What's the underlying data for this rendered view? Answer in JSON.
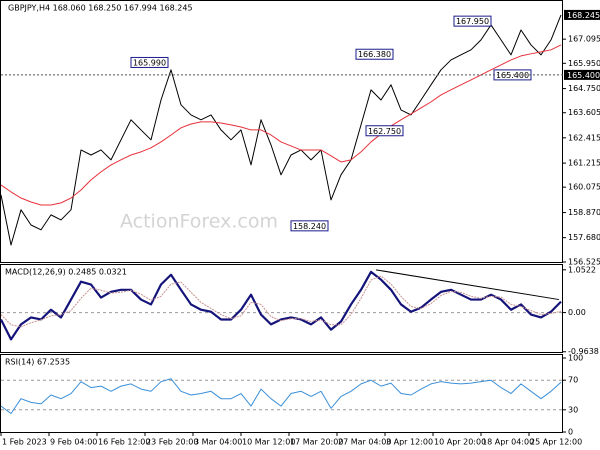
{
  "chart_data": [
    {
      "type": "line",
      "title": "GBPJPY,H4 168.060 168.250 167.994 168.245",
      "watermark": "ActionForex.com",
      "x": [
        0,
        10,
        20,
        30,
        40,
        50,
        60,
        70,
        80,
        90,
        100,
        110,
        120,
        130,
        140,
        150,
        160,
        170,
        180,
        190,
        200,
        210,
        220,
        230,
        240,
        250,
        260,
        270,
        280,
        290,
        300,
        310,
        320,
        330,
        340,
        350,
        360,
        370,
        380,
        390,
        400,
        410,
        420,
        430,
        440,
        450,
        460,
        470,
        480,
        490,
        500,
        510,
        520,
        530,
        540,
        550,
        560
      ],
      "xlim": [
        0,
        562
      ],
      "ylim": [
        156.525,
        168.81
      ],
      "yticks": [
        167.095,
        {
          "value": 165.95,
          "label": "165.950"
        },
        {
          "value": 164.75,
          "label": "164.750"
        },
        163.605,
        162.415,
        161.215,
        160.075,
        {
          "value": 158.87,
          "label": "158.870"
        },
        {
          "value": 157.68,
          "label": "157.680"
        },
        156.525
      ],
      "series": [
        {
          "name": "GBPJPY",
          "color": "#000000",
          "values": [
            159.71,
            157.33,
            159.0,
            158.28,
            158.05,
            158.76,
            158.52,
            159.0,
            161.84,
            161.6,
            161.84,
            161.37,
            162.32,
            163.27,
            162.79,
            162.32,
            164.21,
            165.64,
            163.98,
            163.5,
            163.27,
            163.5,
            162.79,
            162.32,
            162.79,
            161.13,
            163.27,
            162.08,
            160.66,
            161.6,
            161.84,
            161.37,
            161.84,
            159.47,
            160.66,
            161.37,
            163.03,
            164.69,
            164.21,
            164.93,
            163.74,
            163.5,
            164.21,
            164.93,
            165.64,
            166.11,
            166.35,
            166.59,
            167.06,
            167.77,
            167.06,
            166.35,
            167.53,
            166.82,
            166.35,
            167.06,
            168.245
          ]
        },
        {
          "name": "MA",
          "color": "#e8303a",
          "values": [
            160.18,
            159.85,
            159.56,
            159.37,
            159.23,
            159.23,
            159.33,
            159.56,
            159.94,
            160.42,
            160.8,
            161.13,
            161.37,
            161.6,
            161.75,
            161.94,
            162.22,
            162.55,
            162.89,
            163.07,
            163.17,
            163.17,
            163.12,
            163.03,
            162.93,
            162.79,
            162.79,
            162.55,
            162.22,
            162.03,
            161.84,
            161.84,
            161.84,
            161.56,
            161.27,
            161.37,
            161.75,
            162.22,
            162.6,
            162.98,
            163.27,
            163.55,
            163.83,
            164.12,
            164.45,
            164.69,
            164.93,
            165.16,
            165.4,
            165.64,
            165.87,
            166.11,
            166.3,
            166.4,
            166.49,
            166.59,
            166.82
          ]
        }
      ],
      "annotations": [
        {
          "x": 167,
          "value": 165.99,
          "label": "165.990"
        },
        {
          "x": 392,
          "value": 166.38,
          "label": "166.380"
        },
        {
          "x": 490,
          "value": 167.95,
          "label": "167.950"
        },
        {
          "x": 530,
          "value": 165.4,
          "label": "165.400"
        },
        {
          "x": 402,
          "value": 162.75,
          "label": "162.750"
        },
        {
          "x": 327,
          "value": 158.24,
          "label": "158.240"
        }
      ],
      "price_markers": [
        {
          "value": 168.245,
          "label": "168.245",
          "dashed": false
        },
        {
          "value": 165.4,
          "label": "165.400",
          "dashed": true
        }
      ]
    },
    {
      "type": "line",
      "title": "MACD(12,26,9) 0.2485 0.0321",
      "x": [
        0,
        10,
        20,
        30,
        40,
        50,
        60,
        70,
        80,
        90,
        100,
        110,
        120,
        130,
        140,
        150,
        160,
        170,
        180,
        190,
        200,
        210,
        220,
        230,
        240,
        250,
        260,
        270,
        280,
        290,
        300,
        310,
        320,
        330,
        340,
        350,
        360,
        370,
        380,
        390,
        400,
        410,
        420,
        430,
        440,
        450,
        460,
        470,
        480,
        490,
        500,
        510,
        520,
        530,
        540,
        550,
        560
      ],
      "xlim": [
        0,
        562
      ],
      "ylim": [
        -0.97,
        1.17
      ],
      "yticks": [
        1.0522,
        {
          "value": 0,
          "label": "0.00"
        },
        -0.9638
      ],
      "levels": [
        0
      ],
      "series": [
        {
          "name": "MACD",
          "color": "#14147a",
          "width": 2.2,
          "values": [
            -0.17,
            -0.66,
            -0.29,
            -0.12,
            -0.17,
            0.07,
            -0.12,
            0.32,
            0.76,
            0.69,
            0.37,
            0.51,
            0.56,
            0.56,
            0.32,
            0.2,
            0.69,
            0.93,
            0.56,
            0.2,
            0.07,
            0.02,
            -0.17,
            -0.17,
            0.07,
            0.44,
            -0.05,
            -0.29,
            -0.17,
            -0.12,
            -0.17,
            -0.29,
            -0.12,
            -0.42,
            -0.22,
            0.2,
            0.56,
            1.0,
            0.81,
            0.56,
            0.2,
            0.02,
            0.12,
            0.32,
            0.51,
            0.56,
            0.44,
            0.32,
            0.32,
            0.44,
            0.32,
            0.07,
            0.2,
            -0.05,
            -0.12,
            0.02,
            0.27
          ]
        },
        {
          "name": "Signal",
          "color": "#c89090",
          "width": 1,
          "values": [
            -0.05,
            -0.3,
            -0.35,
            -0.25,
            -0.18,
            -0.08,
            -0.05,
            0.05,
            0.35,
            0.6,
            0.55,
            0.48,
            0.5,
            0.55,
            0.45,
            0.3,
            0.4,
            0.7,
            0.75,
            0.5,
            0.25,
            0.1,
            -0.05,
            -0.15,
            -0.08,
            0.25,
            0.2,
            -0.1,
            -0.2,
            -0.15,
            -0.15,
            -0.22,
            -0.18,
            -0.3,
            -0.3,
            -0.05,
            0.35,
            0.8,
            0.9,
            0.7,
            0.4,
            0.15,
            0.1,
            0.22,
            0.42,
            0.52,
            0.5,
            0.4,
            0.35,
            0.4,
            0.38,
            0.2,
            0.15,
            0.05,
            -0.05,
            -0.02,
            0.03
          ]
        }
      ],
      "trendline": {
        "x": [
          375,
          558
        ],
        "values": [
          1.05,
          0.32
        ]
      }
    },
    {
      "type": "line",
      "title": "RSI(14) 67.2535",
      "x": [
        0,
        10,
        20,
        30,
        40,
        50,
        60,
        70,
        80,
        90,
        100,
        110,
        120,
        130,
        140,
        150,
        160,
        170,
        180,
        190,
        200,
        210,
        220,
        230,
        240,
        250,
        260,
        270,
        280,
        290,
        300,
        310,
        320,
        330,
        340,
        350,
        360,
        370,
        380,
        390,
        400,
        410,
        420,
        430,
        440,
        450,
        460,
        470,
        480,
        490,
        500,
        510,
        520,
        530,
        540,
        550,
        560
      ],
      "xlim": [
        0,
        562
      ],
      "ylim": [
        0,
        100
      ],
      "yticks": [
        100,
        70,
        30,
        0
      ],
      "levels": [
        70,
        30
      ],
      "series": [
        {
          "name": "RSI",
          "color": "#3a8fd8",
          "width": 1,
          "values": [
            35,
            25,
            45,
            40,
            38,
            50,
            45,
            52,
            68,
            60,
            62,
            55,
            62,
            65,
            58,
            55,
            68,
            72,
            55,
            50,
            52,
            55,
            45,
            45,
            52,
            35,
            58,
            45,
            35,
            52,
            55,
            48,
            55,
            32,
            48,
            55,
            65,
            70,
            62,
            66,
            52,
            50,
            58,
            65,
            68,
            66,
            65,
            66,
            68,
            70,
            60,
            52,
            65,
            55,
            45,
            55,
            67.25
          ]
        }
      ],
      "xticks": [
        {
          "value": 0,
          "label": "1 Feb 2023"
        },
        {
          "value": 48,
          "label": "9 Feb 04:00"
        },
        {
          "value": 96,
          "label": "16 Feb 12:00"
        },
        {
          "value": 144,
          "label": "23 Feb 20:00"
        },
        {
          "value": 192,
          "label": "3 Mar 04:00"
        },
        {
          "value": 240,
          "label": "10 Mar 12:00"
        },
        {
          "value": 288,
          "label": "17 Mar 20:00"
        },
        {
          "value": 336,
          "label": "27 Mar 04:00"
        },
        {
          "value": 384,
          "label": "3 Apr 12:00"
        },
        {
          "value": 432,
          "label": "10 Apr 20:00"
        },
        {
          "value": 480,
          "label": "18 Apr 04:00"
        },
        {
          "value": 528,
          "label": "25 Apr 12:00"
        }
      ]
    }
  ]
}
